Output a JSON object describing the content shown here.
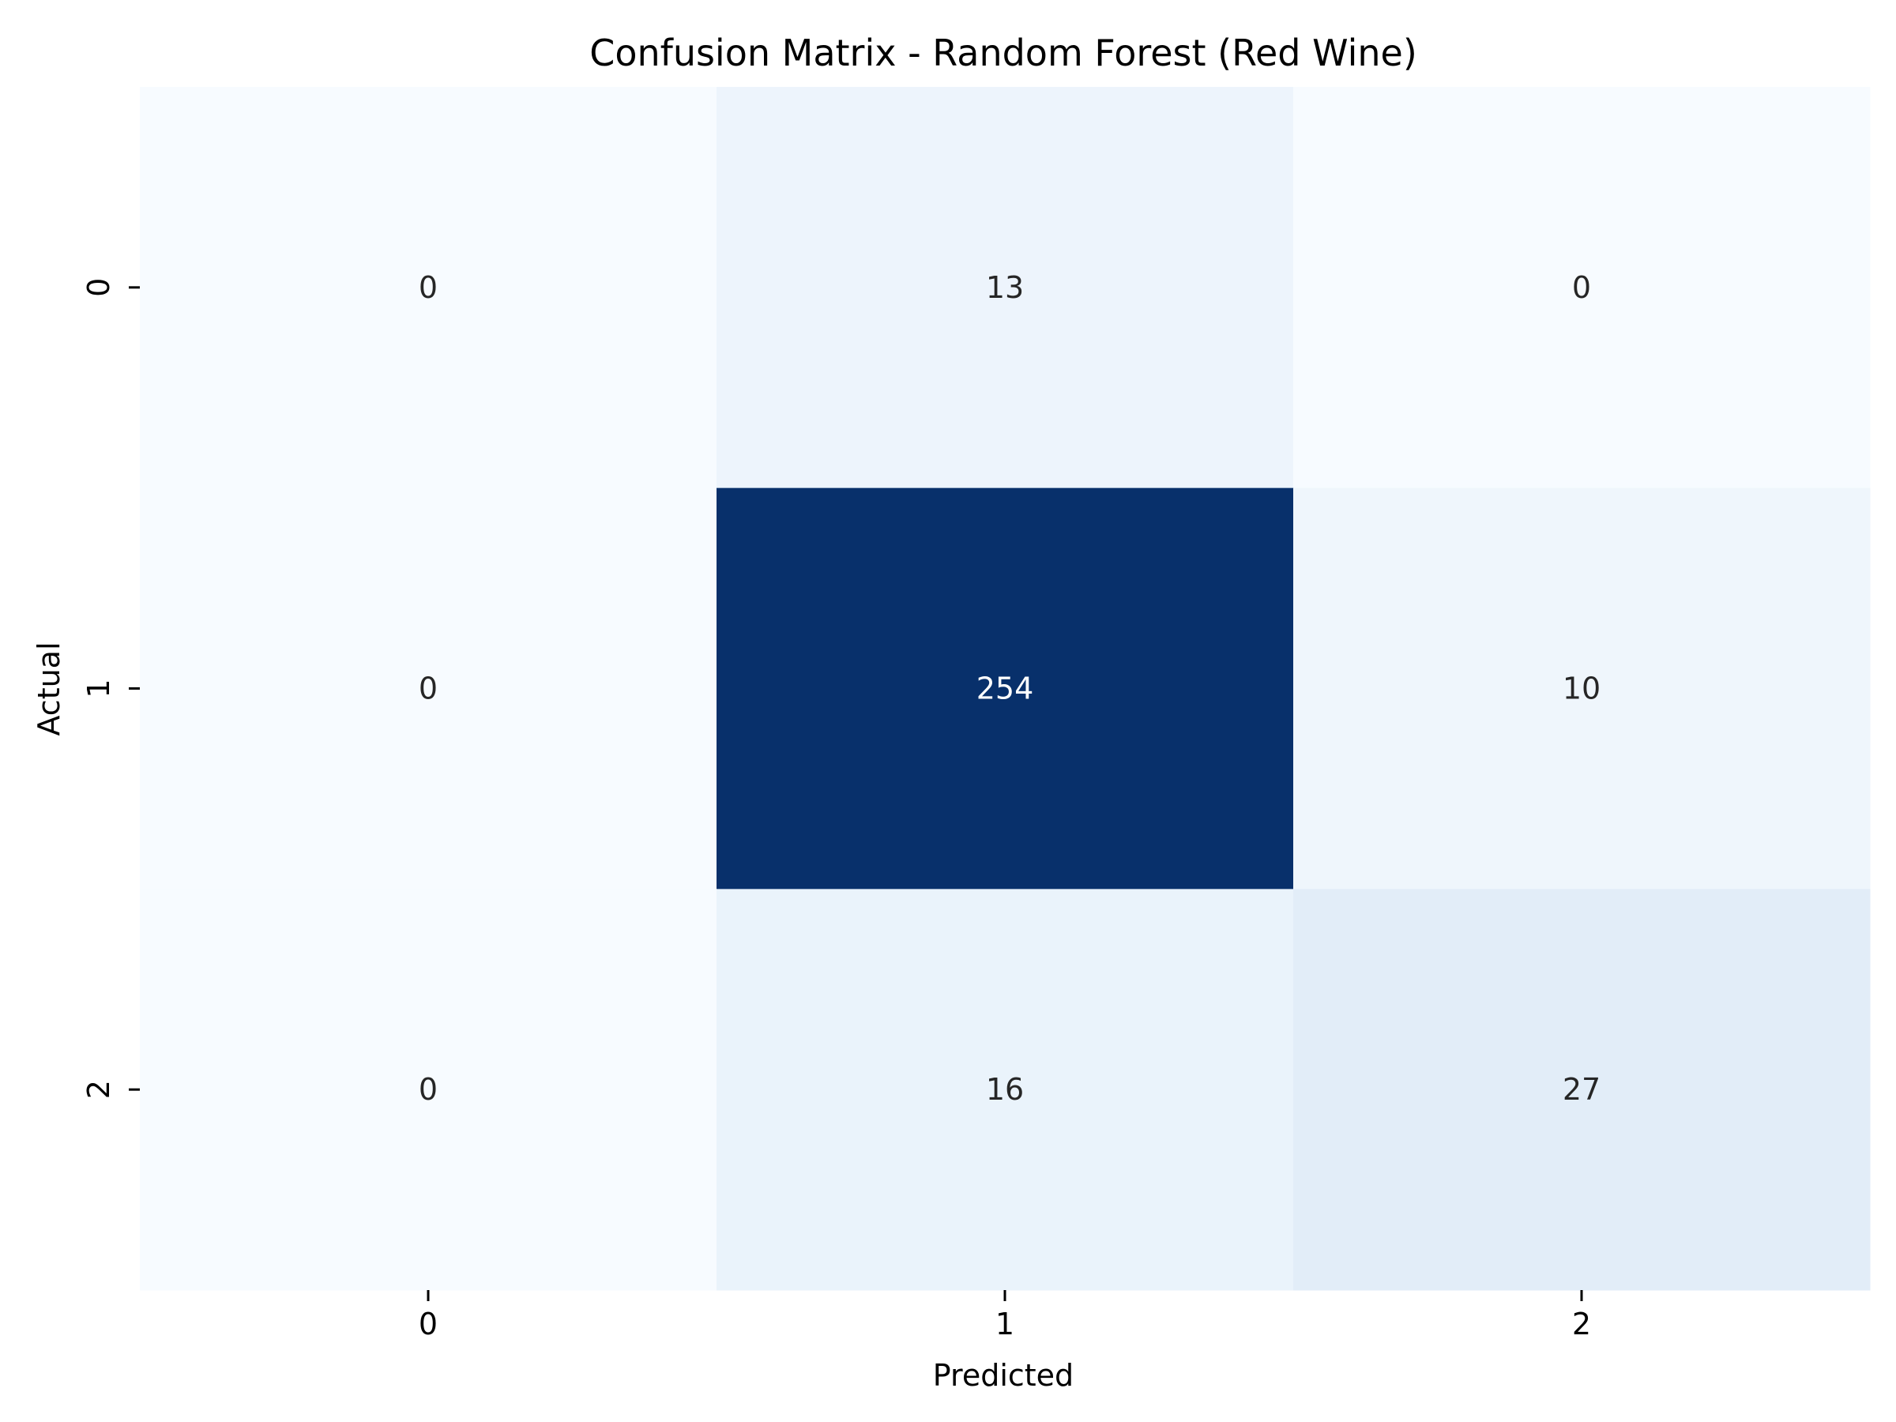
{
  "chart_data": {
    "type": "heatmap",
    "title": "Confusion Matrix - Random Forest (Red Wine)",
    "xlabel": "Predicted",
    "ylabel": "Actual",
    "x_categories": [
      "0",
      "1",
      "2"
    ],
    "y_categories": [
      "0",
      "1",
      "2"
    ],
    "values": [
      [
        0,
        13,
        0
      ],
      [
        0,
        254,
        10
      ],
      [
        0,
        16,
        27
      ]
    ],
    "colormap": "Blues",
    "color_low": "#f7fbff",
    "color_high": "#08306b",
    "annotate": true,
    "colorbar": false,
    "grid": false
  }
}
